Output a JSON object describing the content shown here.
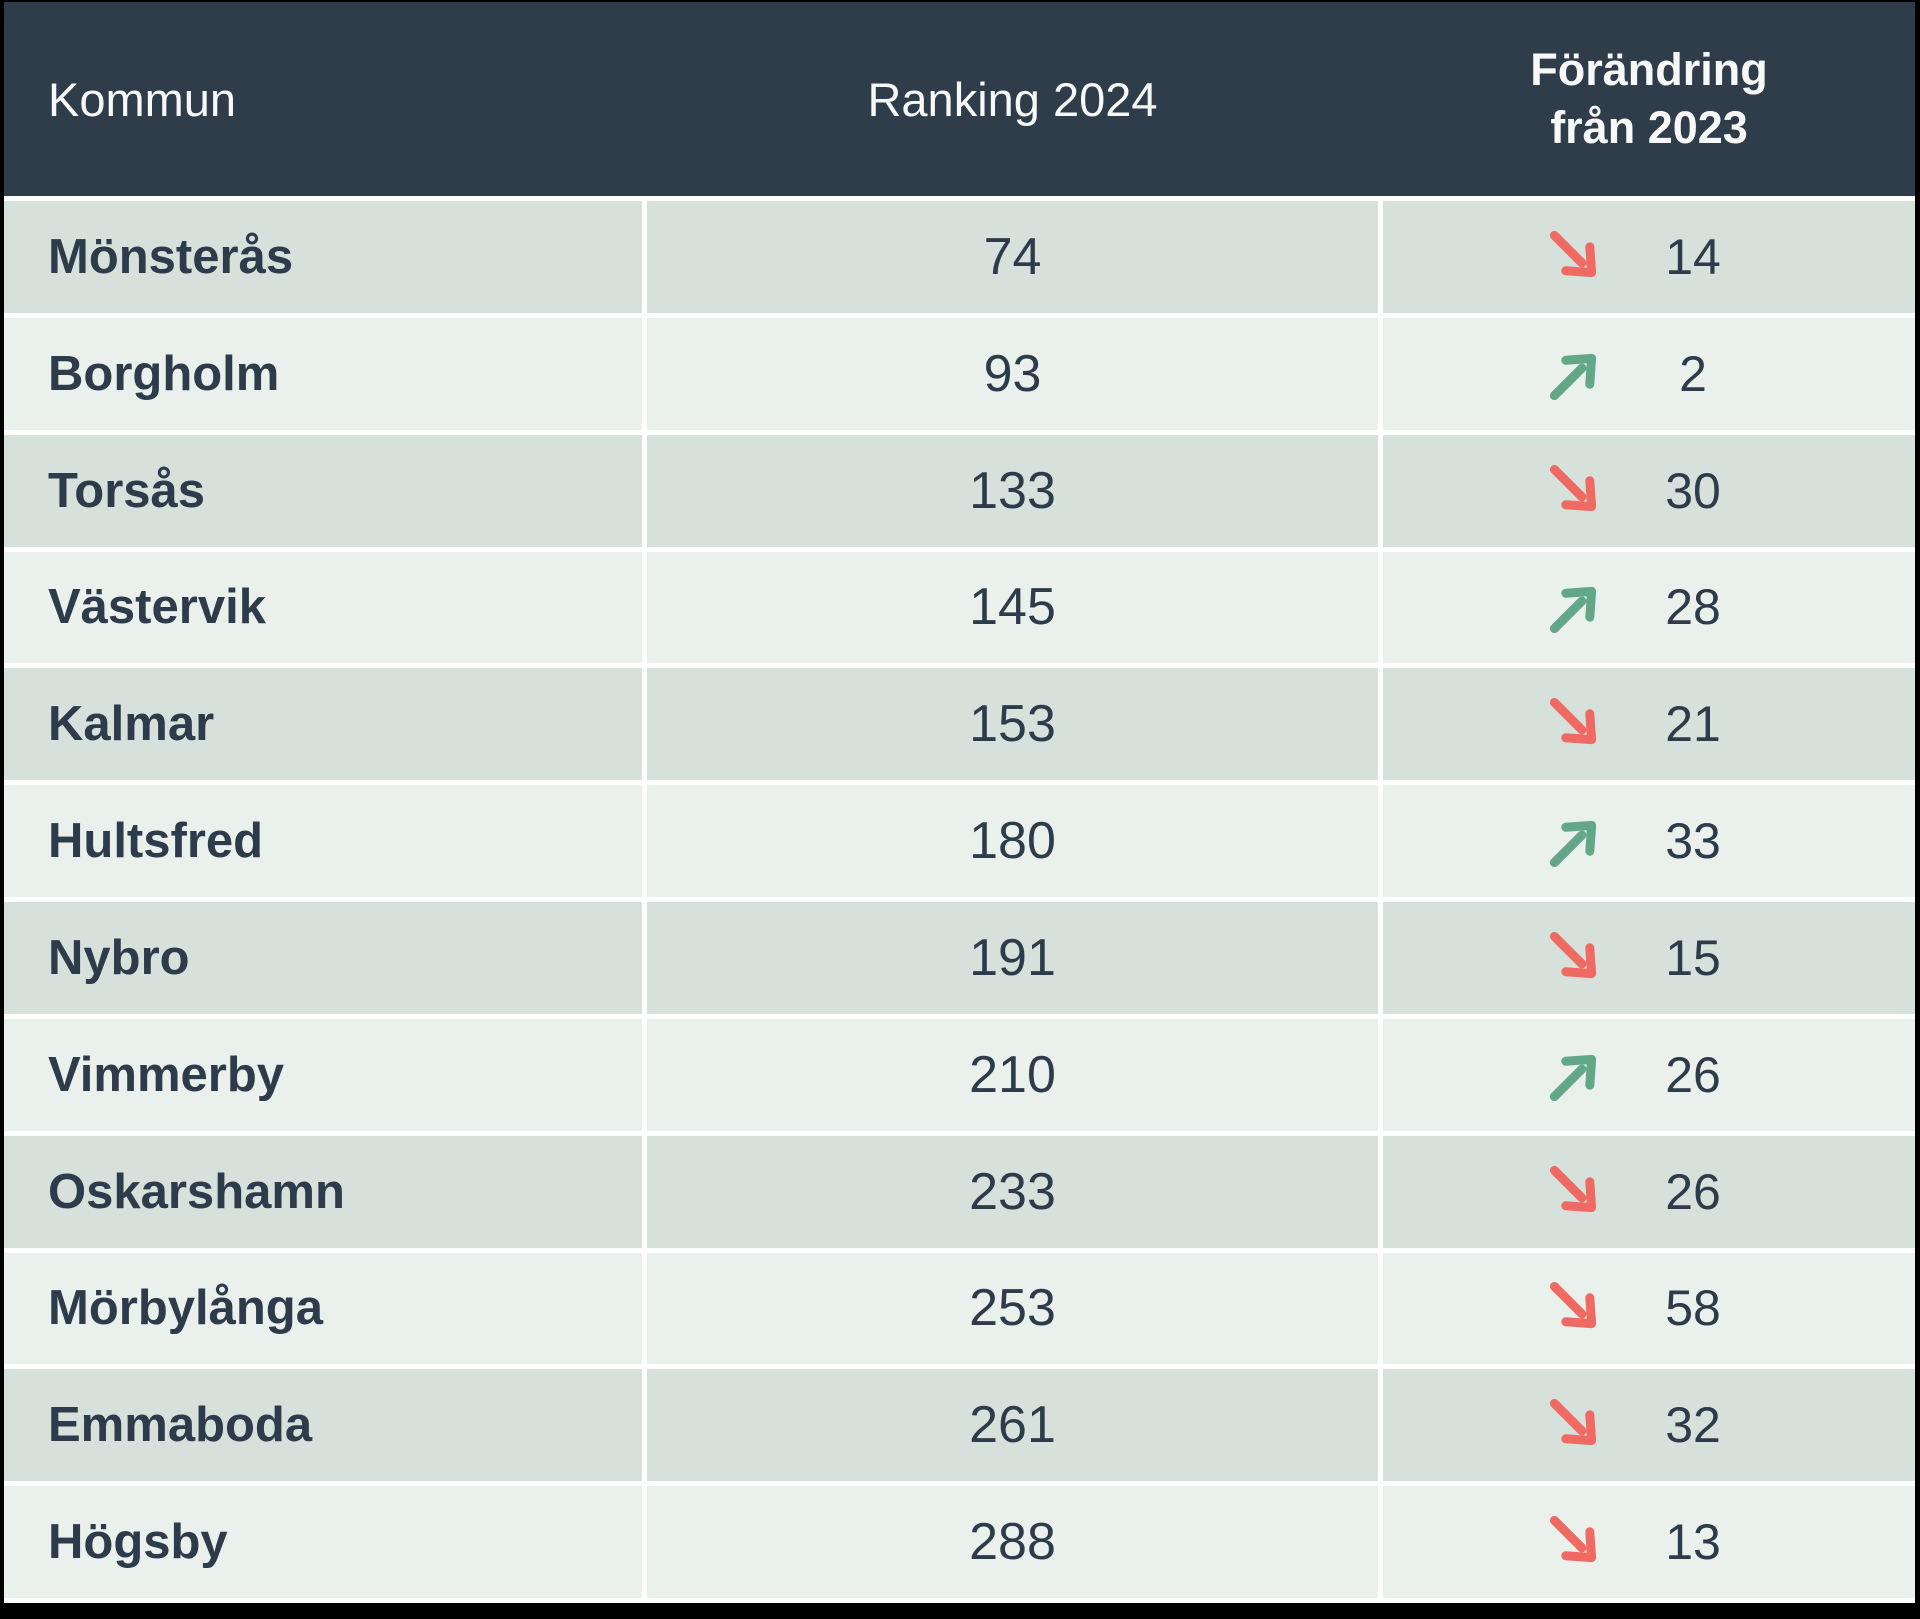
{
  "chart_data": {
    "type": "table",
    "columns": [
      "Kommun",
      "Ranking 2024",
      "Förändring från 2023"
    ],
    "rows": [
      {
        "kommun": "Mönsterås",
        "ranking_2024": "74",
        "change_from_2023": "14",
        "change_direction": "down"
      },
      {
        "kommun": "Borgholm",
        "ranking_2024": "93",
        "change_from_2023": "2",
        "change_direction": "up"
      },
      {
        "kommun": "Torsås",
        "ranking_2024": "133",
        "change_from_2023": "30",
        "change_direction": "down"
      },
      {
        "kommun": "Västervik",
        "ranking_2024": "145",
        "change_from_2023": "28",
        "change_direction": "up"
      },
      {
        "kommun": "Kalmar",
        "ranking_2024": "153",
        "change_from_2023": "21",
        "change_direction": "down"
      },
      {
        "kommun": "Hultsfred",
        "ranking_2024": "180",
        "change_from_2023": "33",
        "change_direction": "up"
      },
      {
        "kommun": "Nybro",
        "ranking_2024": "191",
        "change_from_2023": "15",
        "change_direction": "down"
      },
      {
        "kommun": "Vimmerby",
        "ranking_2024": "210",
        "change_from_2023": "26",
        "change_direction": "up"
      },
      {
        "kommun": "Oskarshamn",
        "ranking_2024": "233",
        "change_from_2023": "26",
        "change_direction": "down"
      },
      {
        "kommun": "Mörbylånga",
        "ranking_2024": "253",
        "change_from_2023": "58",
        "change_direction": "down"
      },
      {
        "kommun": "Emmaboda",
        "ranking_2024": "261",
        "change_from_2023": "32",
        "change_direction": "down"
      },
      {
        "kommun": "Högsby",
        "ranking_2024": "288",
        "change_from_2023": "13",
        "change_direction": "down"
      }
    ]
  },
  "header": {
    "col_kommun": "Kommun",
    "col_ranking": "Ranking 2024",
    "col_change_line1": "Förändring",
    "col_change_line2": "från 2023"
  },
  "icons": {
    "up": "arrow-up-right-icon",
    "down": "arrow-down-right-icon"
  },
  "colors": {
    "header_bg": "#2f3d4b",
    "row_dark": "#d6e1db",
    "row_light": "#eaf0ec",
    "text": "#2e3b4a",
    "arrow_up_green": "#61a788",
    "arrow_down_red": "#ef6a62",
    "grid_line": "#ffffff",
    "frame": "#000000"
  }
}
